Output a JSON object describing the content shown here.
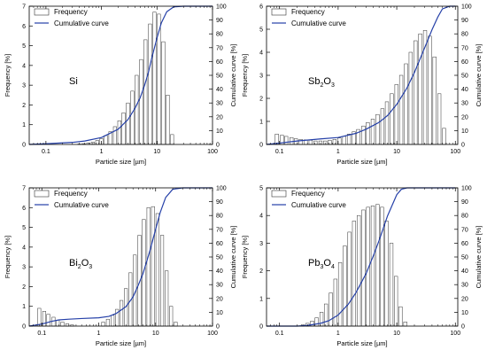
{
  "chart_data": [
    {
      "type": "bar+line",
      "material": {
        "main": "Si",
        "sub": []
      },
      "xlabel": "Particle size [µm]",
      "ylabel_left": "Frequency [%]",
      "ylabel_right": "Cumulative curve [%]",
      "x_scale": "log",
      "xlim": [
        0.05,
        100
      ],
      "x_ticks": [
        "0.1",
        "1",
        "10",
        "100"
      ],
      "ylim_left": [
        0,
        7
      ],
      "y_ticks_left": [
        "0",
        "1",
        "2",
        "3",
        "4",
        "5",
        "6",
        "7"
      ],
      "ylim_right": [
        0,
        100
      ],
      "y_ticks_right": [
        "0",
        "10",
        "20",
        "30",
        "40",
        "50",
        "60",
        "70",
        "80",
        "90",
        "100"
      ],
      "legend": {
        "position": "top-left",
        "entries": [
          "Frequency",
          "Cumulative curve"
        ]
      },
      "frequency": {
        "x": [
          0.4,
          0.48,
          0.58,
          0.7,
          0.84,
          1.0,
          1.2,
          1.45,
          1.75,
          2.1,
          2.5,
          3.0,
          3.6,
          4.3,
          5.2,
          6.2,
          7.5,
          9.0,
          10.8,
          13.0,
          15.6,
          18.7
        ],
        "values": [
          0.02,
          0.04,
          0.08,
          0.12,
          0.2,
          0.3,
          0.45,
          0.65,
          0.9,
          1.2,
          1.6,
          2.1,
          2.7,
          3.5,
          4.3,
          5.3,
          6.1,
          6.7,
          6.6,
          5.2,
          2.5,
          0.5
        ]
      },
      "cumulative": {
        "x": [
          0.05,
          0.1,
          0.3,
          0.5,
          1,
          2,
          3,
          4,
          5,
          6,
          7,
          8,
          10,
          12,
          15,
          20,
          30,
          100
        ],
        "values": [
          0,
          0.5,
          1.5,
          2.5,
          5,
          11,
          18,
          26,
          34,
          43,
          52,
          62,
          77,
          88,
          96,
          99.5,
          100,
          100
        ]
      }
    },
    {
      "type": "bar+line",
      "material": {
        "main": "Sb",
        "sub": [
          "2",
          "O",
          "3"
        ]
      },
      "xlabel": "Particle size [µm]",
      "ylabel_left": "Frequency [%]",
      "ylabel_right": "Cumulative curve [%]",
      "x_scale": "log",
      "xlim": [
        0.06,
        110
      ],
      "x_ticks": [
        "0.1",
        "1",
        "10",
        "100"
      ],
      "ylim_left": [
        0,
        6
      ],
      "y_ticks_left": [
        "0",
        "1",
        "2",
        "3",
        "4",
        "5",
        "6"
      ],
      "ylim_right": [
        0,
        100
      ],
      "y_ticks_right": [
        "0",
        "10",
        "20",
        "30",
        "40",
        "50",
        "60",
        "70",
        "80",
        "90",
        "100"
      ],
      "legend": {
        "position": "top-left",
        "entries": [
          "Frequency",
          "Cumulative curve"
        ]
      },
      "frequency": {
        "x": [
          0.09,
          0.11,
          0.13,
          0.16,
          0.19,
          0.23,
          0.28,
          0.34,
          0.41,
          0.5,
          0.6,
          0.72,
          0.87,
          1.05,
          1.27,
          1.53,
          1.85,
          2.2,
          2.7,
          3.2,
          3.9,
          4.7,
          5.7,
          6.8,
          8.2,
          9.9,
          11.9,
          14.4,
          17.3,
          20.9,
          25.2,
          30.4,
          36.6,
          44.1,
          53.2,
          64.1
        ],
        "values": [
          0.45,
          0.4,
          0.35,
          0.3,
          0.25,
          0.22,
          0.2,
          0.18,
          0.15,
          0.15,
          0.15,
          0.18,
          0.22,
          0.28,
          0.35,
          0.45,
          0.55,
          0.65,
          0.8,
          0.95,
          1.1,
          1.3,
          1.55,
          1.85,
          2.2,
          2.6,
          3.0,
          3.5,
          4.0,
          4.5,
          4.8,
          4.95,
          4.7,
          3.8,
          2.2,
          0.7
        ]
      },
      "cumulative": {
        "x": [
          0.06,
          0.1,
          0.2,
          0.5,
          1,
          2,
          3,
          5,
          7,
          10,
          15,
          20,
          30,
          40,
          50,
          60,
          80,
          100
        ],
        "values": [
          0,
          1,
          2.5,
          4,
          5,
          8,
          11,
          16,
          21,
          29,
          41,
          52,
          70,
          83,
          92,
          98,
          100,
          100
        ]
      }
    },
    {
      "type": "bar+line",
      "material": {
        "main": "Bi",
        "sub": [
          "2",
          "O",
          "3"
        ]
      },
      "xlabel": "Particle size [µm]",
      "ylabel_left": "Frequency [%]",
      "ylabel_right": "Cumulative curve [%]",
      "x_scale": "log",
      "xlim": [
        0.06,
        100
      ],
      "x_ticks": [
        "0.1",
        "1",
        "10",
        "100"
      ],
      "ylim_left": [
        0,
        7
      ],
      "y_ticks_left": [
        "0",
        "1",
        "2",
        "3",
        "4",
        "5",
        "6",
        "7"
      ],
      "ylim_right": [
        0,
        100
      ],
      "y_ticks_right": [
        "0",
        "10",
        "20",
        "30",
        "40",
        "50",
        "60",
        "70",
        "80",
        "90",
        "100"
      ],
      "legend": {
        "position": "top-left",
        "entries": [
          "Frequency",
          "Cumulative curve"
        ]
      },
      "frequency": {
        "x": [
          0.09,
          0.11,
          0.13,
          0.16,
          0.19,
          0.23,
          0.28,
          0.34,
          1.2,
          1.45,
          1.75,
          2.1,
          2.5,
          3.0,
          3.6,
          4.3,
          5.2,
          6.2,
          7.5,
          9.0,
          10.8,
          13.0,
          15.6,
          18.7,
          22.5
        ],
        "values": [
          0.9,
          0.75,
          0.6,
          0.45,
          0.3,
          0.2,
          0.12,
          0.06,
          0.2,
          0.35,
          0.55,
          0.85,
          1.3,
          1.9,
          2.7,
          3.6,
          4.6,
          5.4,
          6.0,
          6.05,
          5.7,
          4.6,
          2.8,
          1.0,
          0.2
        ]
      },
      "cumulative": {
        "x": [
          0.06,
          0.1,
          0.15,
          0.2,
          0.3,
          0.5,
          1,
          1.5,
          2,
          3,
          4,
          5,
          6,
          7,
          8,
          10,
          12,
          15,
          20,
          30,
          100
        ],
        "values": [
          0,
          1.5,
          3.5,
          4.5,
          5,
          5.5,
          6,
          7,
          9,
          14,
          21,
          30,
          38,
          47,
          55,
          70,
          82,
          93,
          99,
          100,
          100
        ]
      }
    },
    {
      "type": "bar+line",
      "material": {
        "main": "Pb",
        "sub": [
          "3",
          "O",
          "4"
        ]
      },
      "xlabel": "Particle size [µm]",
      "ylabel_left": "Frequency [%]",
      "ylabel_right": "Cumulative curve [%]",
      "x_scale": "log",
      "xlim": [
        0.06,
        110
      ],
      "x_ticks": [
        "0.1",
        "1",
        "10",
        "100"
      ],
      "ylim_left": [
        0,
        5
      ],
      "y_ticks_left": [
        "0",
        "1",
        "2",
        "3",
        "4",
        "5"
      ],
      "ylim_right": [
        0,
        100
      ],
      "y_ticks_right": [
        "0",
        "10",
        "20",
        "30",
        "40",
        "50",
        "60",
        "70",
        "80",
        "90",
        "100"
      ],
      "legend": {
        "position": "top-left",
        "entries": [
          "Frequency",
          "Cumulative curve"
        ]
      },
      "frequency": {
        "x": [
          0.25,
          0.3,
          0.36,
          0.43,
          0.52,
          0.62,
          0.75,
          0.9,
          1.08,
          1.3,
          1.56,
          1.87,
          2.25,
          2.7,
          3.24,
          3.9,
          4.7,
          5.6,
          6.7,
          8.1,
          9.7,
          11.6,
          14.0
        ],
        "values": [
          0.05,
          0.1,
          0.18,
          0.3,
          0.5,
          0.8,
          1.2,
          1.7,
          2.3,
          2.9,
          3.4,
          3.8,
          4.0,
          4.2,
          4.3,
          4.35,
          4.4,
          4.3,
          3.8,
          3.0,
          1.8,
          0.7,
          0.15
        ]
      },
      "cumulative": {
        "x": [
          0.06,
          0.2,
          0.3,
          0.5,
          0.7,
          1,
          1.5,
          2,
          3,
          4,
          5,
          7,
          10,
          12,
          15,
          20,
          100
        ],
        "values": [
          0,
          0,
          0.5,
          2,
          4,
          8,
          16,
          24,
          38,
          51,
          62,
          80,
          95,
          99,
          100,
          100,
          100
        ]
      }
    }
  ]
}
